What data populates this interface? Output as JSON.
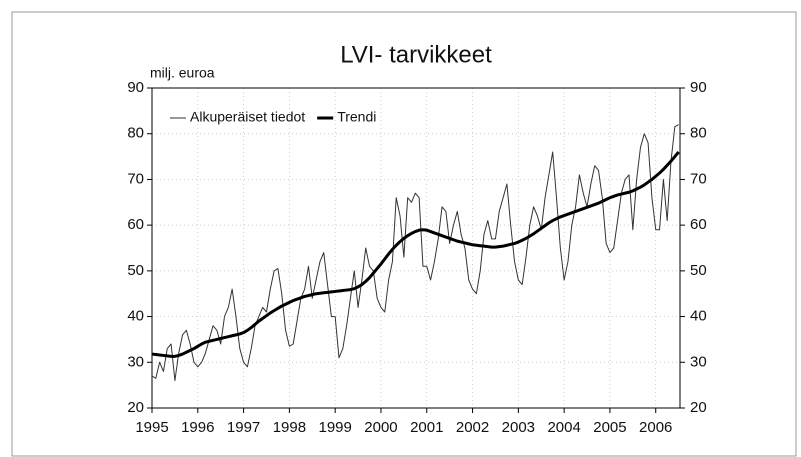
{
  "chart_data": {
    "type": "line",
    "title": "LVI- tarvikkeet",
    "y_label": "milj. euroa",
    "x": [
      1995,
      1995.083,
      1995.167,
      1995.25,
      1995.333,
      1995.417,
      1995.5,
      1995.583,
      1995.667,
      1995.75,
      1995.833,
      1995.917,
      1996,
      1996.083,
      1996.167,
      1996.25,
      1996.333,
      1996.417,
      1996.5,
      1996.583,
      1996.667,
      1996.75,
      1996.833,
      1996.917,
      1997,
      1997.083,
      1997.167,
      1997.25,
      1997.333,
      1997.417,
      1997.5,
      1997.583,
      1997.667,
      1997.75,
      1997.833,
      1997.917,
      1998,
      1998.083,
      1998.167,
      1998.25,
      1998.333,
      1998.417,
      1998.5,
      1998.583,
      1998.667,
      1998.75,
      1998.833,
      1998.917,
      1999,
      1999.083,
      1999.167,
      1999.25,
      1999.333,
      1999.417,
      1999.5,
      1999.583,
      1999.667,
      1999.75,
      1999.833,
      1999.917,
      2000,
      2000.083,
      2000.167,
      2000.25,
      2000.333,
      2000.417,
      2000.5,
      2000.583,
      2000.667,
      2000.75,
      2000.833,
      2000.917,
      2001,
      2001.083,
      2001.167,
      2001.25,
      2001.333,
      2001.417,
      2001.5,
      2001.583,
      2001.667,
      2001.75,
      2001.833,
      2001.917,
      2002,
      2002.083,
      2002.167,
      2002.25,
      2002.333,
      2002.417,
      2002.5,
      2002.583,
      2002.667,
      2002.75,
      2002.833,
      2002.917,
      2003,
      2003.083,
      2003.167,
      2003.25,
      2003.333,
      2003.417,
      2003.5,
      2003.583,
      2003.667,
      2003.75,
      2003.833,
      2003.917,
      2004,
      2004.083,
      2004.167,
      2004.25,
      2004.333,
      2004.417,
      2004.5,
      2004.583,
      2004.667,
      2004.75,
      2004.833,
      2004.917,
      2005,
      2005.083,
      2005.167,
      2005.25,
      2005.333,
      2005.417,
      2005.5,
      2005.583,
      2005.667,
      2005.75,
      2005.833,
      2005.917,
      2006,
      2006.083,
      2006.167,
      2006.25,
      2006.333,
      2006.417,
      2006.5
    ],
    "series": [
      {
        "name": "Alkuperäiset tiedot",
        "color": "#333333",
        "width": 1,
        "values": [
          27,
          26.5,
          30,
          28,
          33,
          34,
          26,
          32,
          36,
          37,
          34,
          30,
          29,
          30,
          32,
          35,
          38,
          37,
          34,
          40,
          42,
          46,
          40,
          33,
          30,
          29,
          33,
          38,
          40,
          42,
          41,
          46,
          50,
          50.5,
          45,
          37,
          33.5,
          34,
          39,
          44,
          46,
          51,
          44,
          48,
          52,
          54,
          47,
          40,
          40,
          31,
          33,
          38,
          44,
          50,
          42,
          48,
          55,
          51,
          50,
          44,
          42,
          41,
          48,
          52,
          66,
          62,
          53,
          66,
          65,
          67,
          66,
          51,
          51,
          48,
          52,
          57,
          64,
          63,
          56,
          60,
          63,
          58,
          55,
          48,
          46,
          45,
          50,
          58,
          61,
          57,
          57,
          63,
          66,
          69,
          60,
          52,
          48,
          47,
          53,
          60,
          64,
          62,
          59,
          66,
          71,
          76,
          66,
          55,
          48,
          52,
          60,
          64,
          71,
          67,
          64,
          69,
          73,
          72,
          66,
          56,
          54,
          55,
          61,
          67,
          70,
          71,
          59,
          70,
          77,
          80,
          78,
          66,
          59,
          59,
          70,
          61,
          74,
          81.5,
          82
        ]
      },
      {
        "name": "Trendi",
        "color": "#000000",
        "width": 3,
        "values": [
          31.8,
          31.7,
          31.6,
          31.5,
          31.4,
          31.3,
          31.3,
          31.5,
          31.8,
          32.2,
          32.6,
          33,
          33.5,
          34,
          34.4,
          34.6,
          34.8,
          35,
          35.2,
          35.4,
          35.6,
          35.8,
          36,
          36.2,
          36.5,
          37,
          37.6,
          38.3,
          39,
          39.6,
          40.2,
          40.8,
          41.3,
          41.8,
          42.3,
          42.7,
          43.1,
          43.5,
          43.8,
          44.1,
          44.4,
          44.6,
          44.8,
          45,
          45.1,
          45.2,
          45.3,
          45.4,
          45.5,
          45.6,
          45.7,
          45.8,
          45.9,
          46.1,
          46.5,
          47,
          47.7,
          48.5,
          49.5,
          50.5,
          51.5,
          52.6,
          53.7,
          54.7,
          55.6,
          56.4,
          57.1,
          57.7,
          58.2,
          58.6,
          58.9,
          59,
          58.9,
          58.6,
          58.3,
          58,
          57.7,
          57.4,
          57.1,
          56.8,
          56.5,
          56.3,
          56.1,
          55.9,
          55.7,
          55.6,
          55.5,
          55.4,
          55.3,
          55.2,
          55.2,
          55.3,
          55.4,
          55.6,
          55.8,
          56,
          56.3,
          56.7,
          57.1,
          57.6,
          58.1,
          58.7,
          59.3,
          59.9,
          60.5,
          61,
          61.4,
          61.8,
          62.1,
          62.4,
          62.7,
          63,
          63.3,
          63.6,
          63.9,
          64.2,
          64.5,
          64.8,
          65.2,
          65.6,
          66,
          66.3,
          66.6,
          66.8,
          67,
          67.2,
          67.5,
          67.9,
          68.3,
          68.8,
          69.4,
          70,
          70.7,
          71.4,
          72.2,
          73.1,
          74,
          75,
          76
        ]
      }
    ],
    "xlim": [
      1995,
      2006.53
    ],
    "xticks": [
      1995,
      1996,
      1997,
      1998,
      1999,
      2000,
      2001,
      2002,
      2003,
      2004,
      2005,
      2006
    ],
    "ylim": [
      20,
      90
    ],
    "yticks": [
      20,
      30,
      40,
      50,
      60,
      70,
      80,
      90
    ],
    "y2lim": [
      20,
      90
    ],
    "y2ticks": [
      20,
      30,
      40,
      50,
      60,
      70,
      80,
      90
    ],
    "grid": true,
    "legend": "top-left"
  }
}
